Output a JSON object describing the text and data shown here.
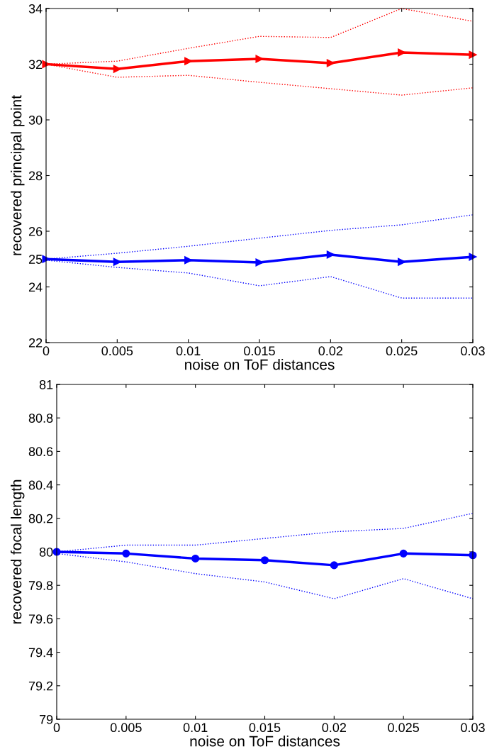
{
  "chart_data": [
    {
      "type": "line",
      "xlabel": "noise on ToF distances",
      "ylabel": "recovered principal point",
      "x": [
        0,
        0.005,
        0.01,
        0.015,
        0.02,
        0.025,
        0.03
      ],
      "xlim": [
        0,
        0.03
      ],
      "xticks": [
        0,
        0.005,
        0.01,
        0.015,
        0.02,
        0.025,
        0.03
      ],
      "ylim": [
        22,
        34
      ],
      "yticks": [
        22,
        24,
        25,
        26,
        28,
        30,
        32,
        34
      ],
      "grid": false,
      "legend": false,
      "series": [
        {
          "color": "#ff0000",
          "values": [
            32.0,
            31.83,
            32.11,
            32.19,
            32.04,
            32.42,
            32.34
          ],
          "marker": "triangle",
          "line_style": "solid"
        },
        {
          "color": "#ff0000",
          "values": [
            32.0,
            32.11,
            32.57,
            33.0,
            32.96,
            34.0,
            33.54
          ],
          "marker": "none",
          "line_style": "dotted"
        },
        {
          "color": "#ff0000",
          "values": [
            32.0,
            31.53,
            31.6,
            31.35,
            31.12,
            30.89,
            31.15
          ],
          "marker": "none",
          "line_style": "dotted"
        },
        {
          "color": "#0000ff",
          "values": [
            25.0,
            24.9,
            24.96,
            24.88,
            25.16,
            24.9,
            25.08
          ],
          "marker": "triangle",
          "line_style": "solid"
        },
        {
          "color": "#0000ff",
          "values": [
            25.0,
            25.21,
            25.46,
            25.75,
            26.03,
            26.23,
            26.59
          ],
          "marker": "none",
          "line_style": "dotted"
        },
        {
          "color": "#0000ff",
          "values": [
            24.96,
            24.7,
            24.5,
            24.04,
            24.37,
            23.6,
            23.6
          ],
          "marker": "none",
          "line_style": "dotted"
        }
      ]
    },
    {
      "type": "line",
      "xlabel": "noise on ToF distances",
      "ylabel": "recovered focal length",
      "x": [
        0,
        0.005,
        0.01,
        0.015,
        0.02,
        0.025,
        0.03
      ],
      "xlim": [
        0,
        0.03
      ],
      "xticks": [
        0,
        0.005,
        0.01,
        0.015,
        0.02,
        0.025,
        0.03
      ],
      "ylim": [
        79,
        81
      ],
      "yticks": [
        79,
        79.2,
        79.4,
        79.6,
        79.8,
        80,
        80.2,
        80.4,
        80.6,
        80.8,
        81
      ],
      "grid": false,
      "legend": false,
      "series": [
        {
          "color": "#0000ff",
          "values": [
            80.0,
            79.99,
            79.96,
            79.95,
            79.92,
            79.99,
            79.98
          ],
          "marker": "circle",
          "line_style": "solid"
        },
        {
          "color": "#0000ff",
          "values": [
            80.0,
            80.04,
            80.04,
            80.08,
            80.12,
            80.14,
            80.23
          ],
          "marker": "none",
          "line_style": "dotted"
        },
        {
          "color": "#0000ff",
          "values": [
            79.99,
            79.94,
            79.87,
            79.82,
            79.72,
            79.84,
            79.72
          ],
          "marker": "none",
          "line_style": "dotted"
        }
      ]
    }
  ]
}
